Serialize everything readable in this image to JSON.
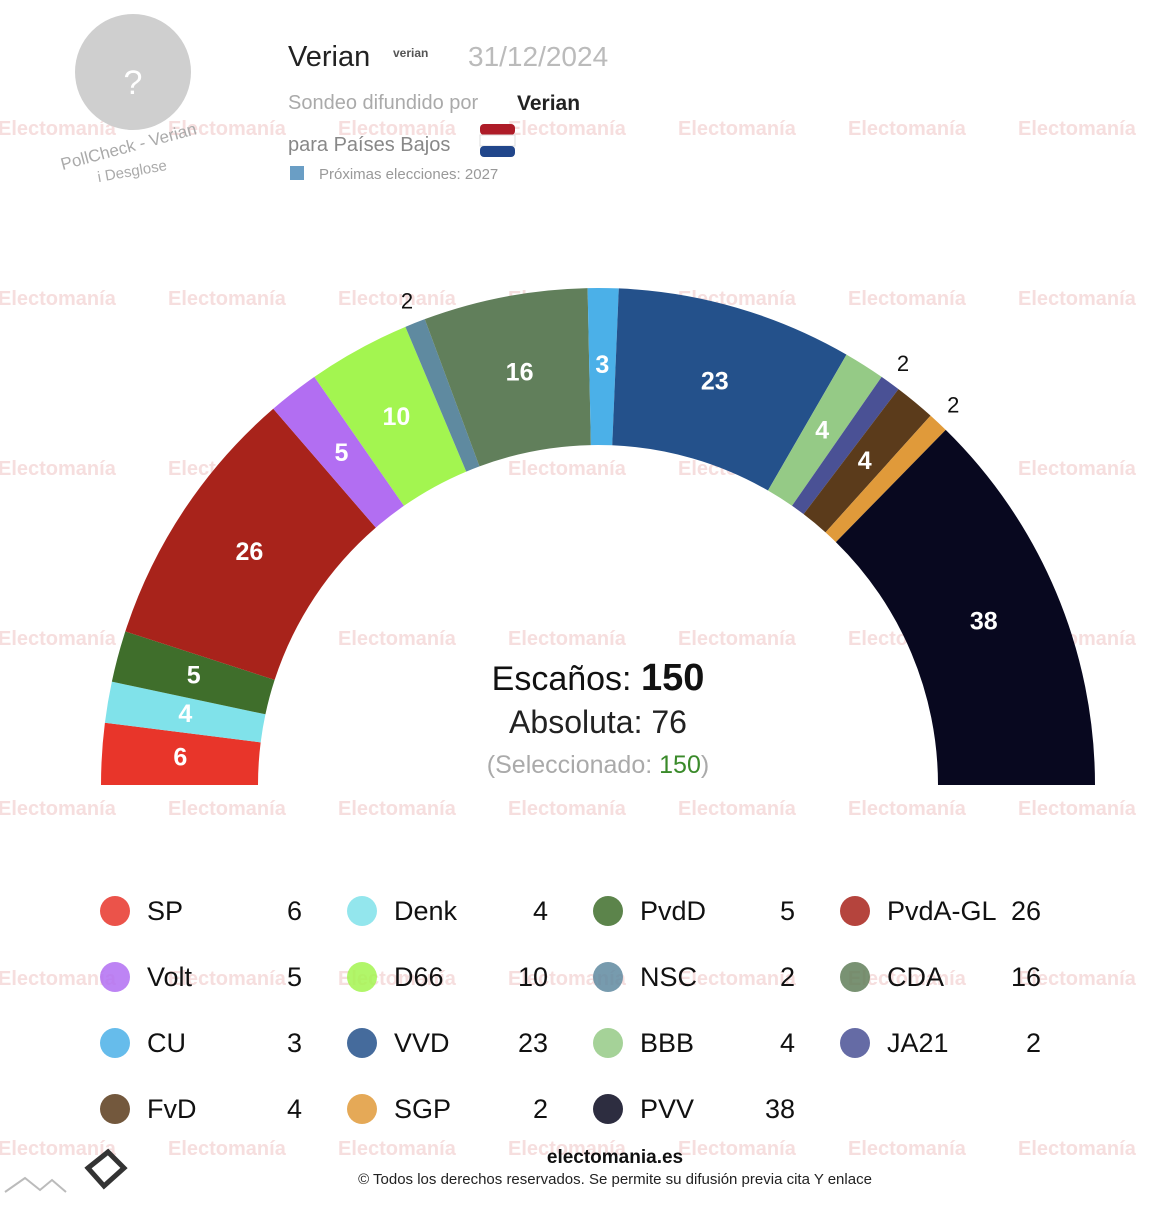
{
  "header": {
    "pollster": "Verian",
    "logo_text": "verian",
    "date": "31/12/2024",
    "spread_by": "Sondeo difundido por",
    "spread_by_name": "Verian",
    "country": "para Países Bajos",
    "next_elections": "Próximas elecciones: 2027",
    "avatar": "?",
    "pollcheck": "PollCheck - Verian",
    "breakdown": "i Desglose"
  },
  "watermark": "Electomanía",
  "chart_data": {
    "type": "parliament",
    "categories": [
      "SP",
      "Denk",
      "PvdD",
      "PvdA-GL",
      "Volt",
      "D66",
      "NSC",
      "CDA",
      "CU",
      "VVD",
      "BBB",
      "JA21",
      "FvD",
      "SGP",
      "PVV"
    ],
    "values": [
      6,
      4,
      5,
      26,
      5,
      10,
      2,
      16,
      3,
      23,
      4,
      2,
      4,
      2,
      38
    ],
    "colors": [
      "#e8352a",
      "#80e2ea",
      "#3f6e2b",
      "#a8231b",
      "#b26ef2",
      "#a3f550",
      "#5f8aa0",
      "#617f5b",
      "#4bb0e8",
      "#24518b",
      "#95ca86",
      "#4a5195",
      "#5b3b1b",
      "#e09a3a",
      "#08081f"
    ],
    "seats_label": "Escaños:",
    "seats": 150,
    "majority_label": "Absoluta:",
    "majority": 76,
    "selected_label": "(Seleccionado:",
    "selected": 150,
    "selected_close": ")"
  },
  "footer": {
    "site": "electomania.es",
    "rights": "© Todos los derechos reservados. Se permite su difusión previa cita Y enlace"
  }
}
